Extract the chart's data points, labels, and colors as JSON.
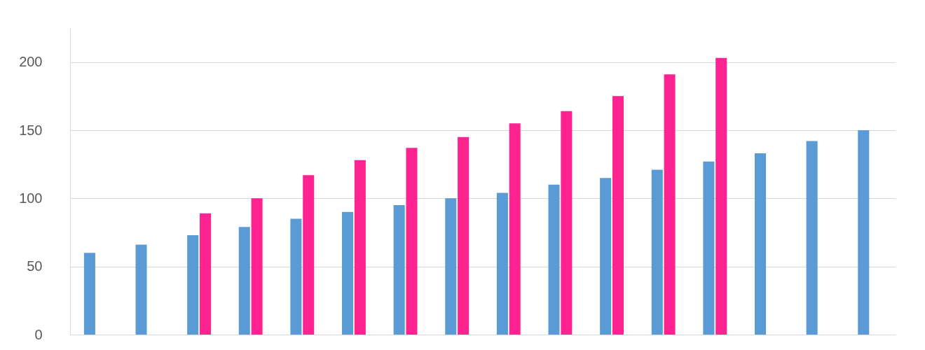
{
  "chart_data": {
    "type": "bar",
    "categories": [
      null,
      null,
      null,
      null,
      null,
      null,
      null,
      null,
      null,
      null,
      null,
      null,
      null,
      null,
      null,
      null
    ],
    "series": [
      {
        "color": "#5b9bd5",
        "values": [
          60,
          66,
          73,
          79,
          85,
          90,
          95,
          100,
          104,
          110,
          115,
          121,
          127,
          133,
          142,
          150
        ]
      },
      {
        "color": "#ff2291",
        "values": [
          null,
          null,
          89,
          100,
          117,
          128,
          137,
          145,
          155,
          164,
          175,
          191,
          203,
          null,
          null,
          null
        ]
      }
    ],
    "ylim": [
      0,
      225
    ],
    "yticks": [
      0,
      50,
      100,
      150,
      200
    ],
    "grid": "y",
    "tick_labels": "y",
    "legend": false
  }
}
